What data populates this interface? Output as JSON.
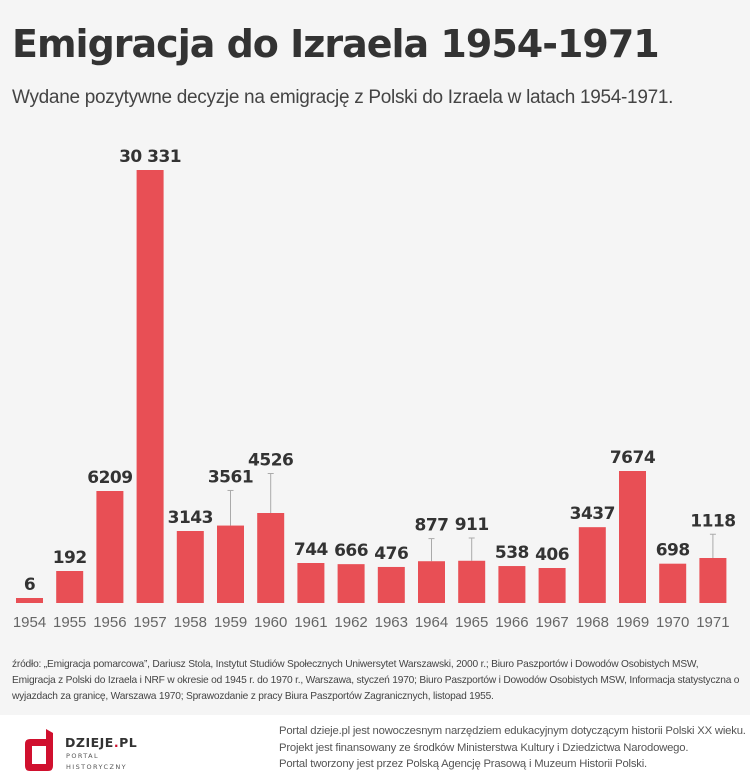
{
  "header": {
    "title": "Emigracja do Izraela 1954-1971",
    "subtitle": "Wydane pozytywne decyzje na emigrację z Polski do Izraela w latach 1954-1971."
  },
  "chart_data": {
    "type": "bar",
    "title": "Emigracja do Izraela 1954-1971",
    "subtitle": "Wydane pozytywne decyzje na emigrację z Polski do Izraela w latach 1954-1971.",
    "xlabel": "",
    "ylabel": "",
    "grid": false,
    "legend": "none",
    "categories": [
      "1954",
      "1955",
      "1956",
      "1957",
      "1958",
      "1959",
      "1960",
      "1961",
      "1962",
      "1963",
      "1964",
      "1965",
      "1966",
      "1967",
      "1968",
      "1969",
      "1970",
      "1971"
    ],
    "values": [
      6,
      192,
      6209,
      30331,
      3143,
      3561,
      4526,
      744,
      666,
      476,
      877,
      911,
      538,
      406,
      3437,
      7674,
      698,
      1118
    ],
    "labels": [
      "6",
      "192",
      "6209",
      "30 331",
      "3143",
      "3561",
      "4526",
      "744",
      "666",
      "476",
      "877",
      "911",
      "538",
      "406",
      "3437",
      "7674",
      "698",
      "1118"
    ],
    "error_bars_on": [
      "1959",
      "1960",
      "1964",
      "1965",
      "1971"
    ],
    "bar_color": "#e84f55",
    "error_bar_color": "#aaaaaa"
  },
  "source": {
    "text": "źródło: „Emigracja pomarcowa”, Dariusz Stola, Instytut Studiów Społecznych Uniwersytet Warszawski, 2000 r.; Biuro Paszportów i Dowodów Osobistych MSW, Emigracja z Polski do Izraela i NRF w okresie od 1945 r. do 1970 r., Warszawa, styczeń 1970; Biuro Paszportów i Dowodów Osobistych MSW, Informacja statystyczna o wyjazdach za granicę, Warszawa 1970; Sprawozdanie z pracy Biura Paszportów Zagranicznych, listopad 1955."
  },
  "footer": {
    "brand_main": "DZIEJE",
    "brand_dot": ".",
    "brand_tld": "PL",
    "brand_line1": "PORTAL",
    "brand_line2": "HISTORYCZNY",
    "logo_color": "#d0102e",
    "lines": [
      "Portal dzieje.pl jest nowoczesnym narzędziem edukacyjnym dotyczącym historii Polski XX wieku.",
      "Projekt jest finansowany ze środków Ministerstwa Kultury i Dziedzictwa Narodowego.",
      "Portal tworzony jest przez Polską Agencję Prasową i Muzeum Historii Polski."
    ]
  }
}
